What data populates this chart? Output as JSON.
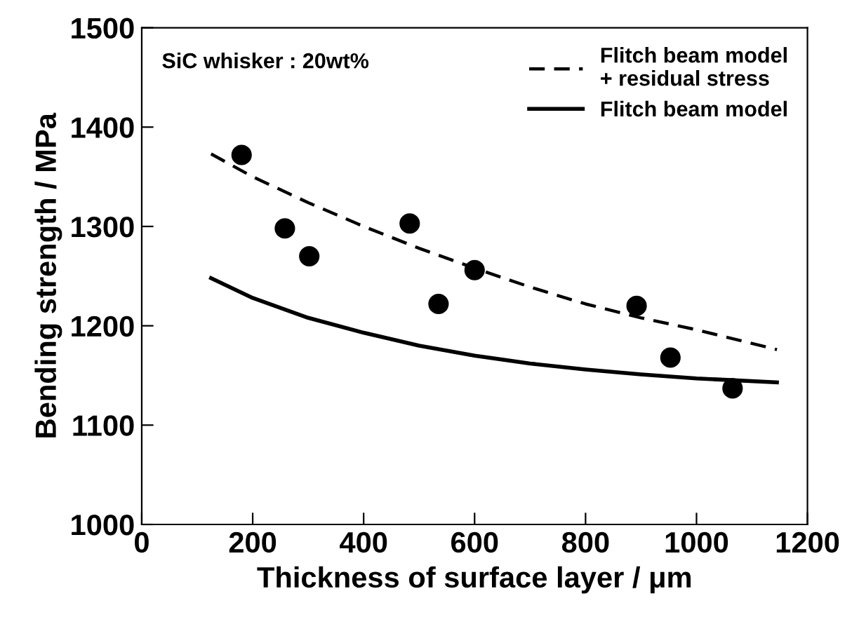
{
  "chart_data": {
    "type": "scatter",
    "xlabel": "Thickness of surface layer / μm",
    "ylabel": "Bending strength / MPa",
    "annotations": [
      "SiC whisker : 20wt%"
    ],
    "xlim": [
      0,
      1200
    ],
    "xticks": [
      0,
      200,
      400,
      600,
      800,
      1000,
      1200
    ],
    "ylim": [
      1000,
      1500
    ],
    "yticks": [
      1000,
      1100,
      1200,
      1300,
      1400,
      1500
    ],
    "grid": false,
    "legend": "top right",
    "series": [
      {
        "color": "#000000",
        "marker": "circle",
        "x": [
          180,
          258,
          302,
          483,
          535,
          600,
          892,
          953,
          1065
        ],
        "values": [
          1372,
          1298,
          1270,
          1303,
          1222,
          1256,
          1220,
          1168,
          1137
        ]
      },
      {
        "type": "line",
        "name": "Flitch beam model\n+ residual stress",
        "color": "#000000",
        "line_style": "dashed",
        "x": [
          125,
          200,
          300,
          400,
          500,
          600,
          700,
          800,
          900,
          1000,
          1145
        ],
        "values": [
          1373,
          1350,
          1324,
          1300,
          1278,
          1258,
          1239,
          1222,
          1208,
          1196,
          1176
        ]
      },
      {
        "type": "line",
        "name": "Flitch beam model",
        "color": "#000000",
        "line_style": "solid",
        "x": [
          125,
          200,
          300,
          400,
          500,
          600,
          700,
          800,
          900,
          1000,
          1145
        ],
        "values": [
          1248,
          1228,
          1208,
          1193,
          1180,
          1170,
          1162,
          1156,
          1151,
          1147,
          1143
        ]
      }
    ]
  }
}
